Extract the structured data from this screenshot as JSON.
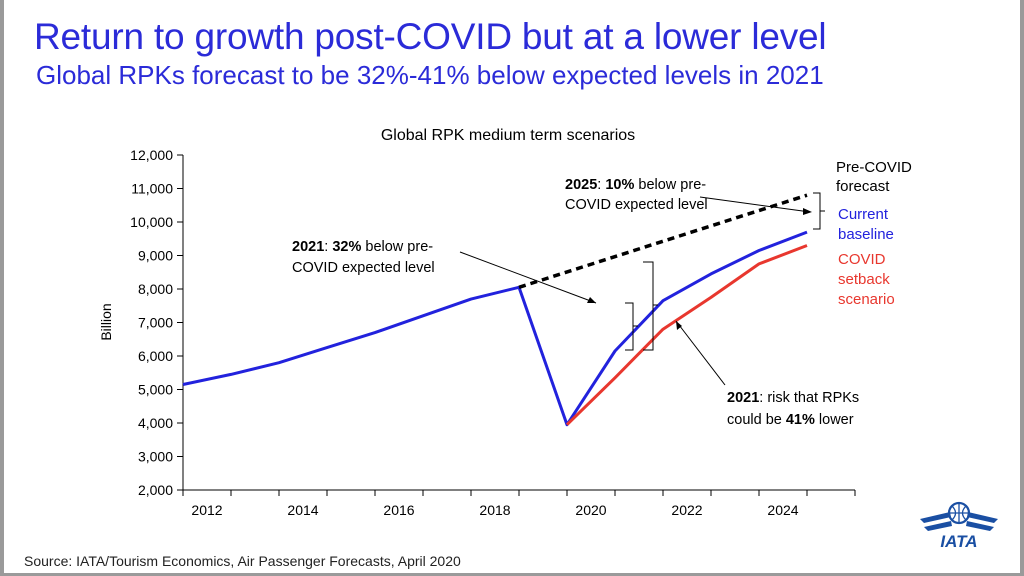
{
  "slide": {
    "title": "Return to growth post-COVID but at a lower level",
    "subtitle": "Global RPKs forecast to be 32%-41% below expected levels in 2021",
    "source": "Source: IATA/Tourism Economics, Air Passenger Forecasts, April 2020",
    "logo_text": "IATA"
  },
  "colors": {
    "title": "#2b2bd8",
    "baseline": "#2222dd",
    "setback": "#e8372e",
    "precovid": "#000000",
    "logo": "#1a4fa3"
  },
  "chart_data": {
    "type": "line",
    "title": "Global RPK medium term scenarios",
    "ylabel": "Billion",
    "xlabel": "",
    "ylim": [
      2000,
      12000
    ],
    "yticks": [
      2000,
      3000,
      4000,
      5000,
      6000,
      7000,
      8000,
      9000,
      10000,
      11000,
      12000
    ],
    "ytick_labels": [
      "2,000",
      "3,000",
      "4,000",
      "5,000",
      "6,000",
      "7,000",
      "8,000",
      "9,000",
      "10,000",
      "11,000",
      "12,000"
    ],
    "xlim": [
      2011.5,
      2025.5
    ],
    "xticks": [
      2012,
      2014,
      2016,
      2018,
      2020,
      2022,
      2024
    ],
    "xtick_labels": [
      "2012",
      "2014",
      "2016",
      "2018",
      "2020",
      "2022",
      "2024"
    ],
    "series": [
      {
        "name": "Current baseline",
        "label_lines": [
          "Current",
          "baseline"
        ],
        "style": "solid",
        "color": "#2222dd",
        "x": [
          2011.5,
          2012.5,
          2013.5,
          2014.5,
          2015.5,
          2016.5,
          2017.5,
          2018.5,
          2019.5,
          2020.5,
          2021.5,
          2022.5,
          2023.5,
          2024.5,
          2025.5
        ],
        "y": [
          5150,
          5450,
          5800,
          6250,
          6700,
          7200,
          7700,
          8050,
          3950,
          6150,
          7650,
          8450,
          9150,
          9700,
          null
        ]
      },
      {
        "name": "COVID setback scenario",
        "label_lines": [
          "COVID",
          "setback",
          "scenario"
        ],
        "style": "solid",
        "color": "#e8372e",
        "x": [
          2019.5,
          2020.5,
          2021.5,
          2022.5,
          2023.5,
          2024.5
        ],
        "y": [
          3950,
          5350,
          6800,
          7750,
          8750,
          9300
        ]
      },
      {
        "name": "Pre-COVID forecast",
        "label_lines": [
          "Pre-COVID",
          "forecast"
        ],
        "style": "dashed",
        "color": "#000000",
        "x": [
          2018.5,
          2024.5
        ],
        "y": [
          8050,
          10800
        ]
      }
    ],
    "annotations": [
      {
        "name": "annotation-2021-32pct",
        "bold": "2021",
        "lines": [
          ": 32% below pre-",
          "COVID expected level"
        ],
        "bold_inline": "32%"
      },
      {
        "name": "annotation-2025-10pct",
        "bold": "2025",
        "lines": [
          ": 10% below pre-",
          "COVID expected level"
        ],
        "bold_inline": "10%"
      },
      {
        "name": "annotation-2021-41pct",
        "bold": "2021",
        "lines": [
          ": risk that RPKs",
          "could be 41% lower"
        ],
        "bold_inline": "41%"
      }
    ]
  }
}
